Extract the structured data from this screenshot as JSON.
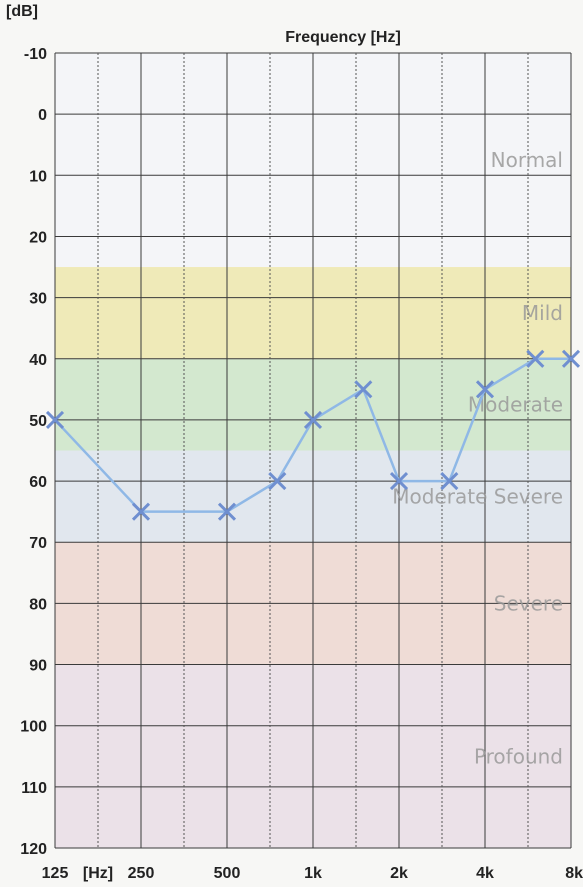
{
  "chart_data": {
    "type": "line",
    "title": "Frequency [Hz]",
    "ylabel": "[dB]",
    "xlabel": "",
    "y_inverted": true,
    "ylim": [
      -10,
      120
    ],
    "yticks": [
      -10,
      0,
      10,
      20,
      30,
      40,
      50,
      60,
      70,
      80,
      90,
      100,
      110,
      120
    ],
    "x_scale": "log",
    "xlim": [
      125,
      8000
    ],
    "xtick_labels": [
      {
        "value": 125,
        "label": "125"
      },
      {
        "value": 176.8,
        "label": "[Hz]"
      },
      {
        "value": 250,
        "label": "250"
      },
      {
        "value": 500,
        "label": "500"
      },
      {
        "value": 1000,
        "label": "1k"
      },
      {
        "value": 2000,
        "label": "2k"
      },
      {
        "value": 4000,
        "label": "4k"
      },
      {
        "value": 8000,
        "label": "8k"
      }
    ],
    "grid": true,
    "bands": [
      {
        "label": "Normal",
        "from": -10,
        "to": 25,
        "color": "#f4f5f8"
      },
      {
        "label": "Mild",
        "from": 25,
        "to": 40,
        "color": "#efeab8"
      },
      {
        "label": "Moderate",
        "from": 40,
        "to": 55,
        "color": "#d3e8cf"
      },
      {
        "label": "Moderate Severe",
        "from": 55,
        "to": 70,
        "color": "#e1e7ee"
      },
      {
        "label": "Severe",
        "from": 70,
        "to": 90,
        "color": "#efdcd6"
      },
      {
        "label": "Profound",
        "from": 90,
        "to": 120,
        "color": "#ebe1e8"
      }
    ],
    "series": [
      {
        "marker": "x",
        "color": "#8fb8e6",
        "marker_color": "#6f8fd0",
        "x": [
          125,
          250,
          500,
          750,
          1000,
          1500,
          2000,
          3000,
          4000,
          6000,
          8000
        ],
        "y": [
          50,
          65,
          65,
          60,
          50,
          45,
          60,
          60,
          45,
          40,
          40
        ]
      }
    ]
  }
}
